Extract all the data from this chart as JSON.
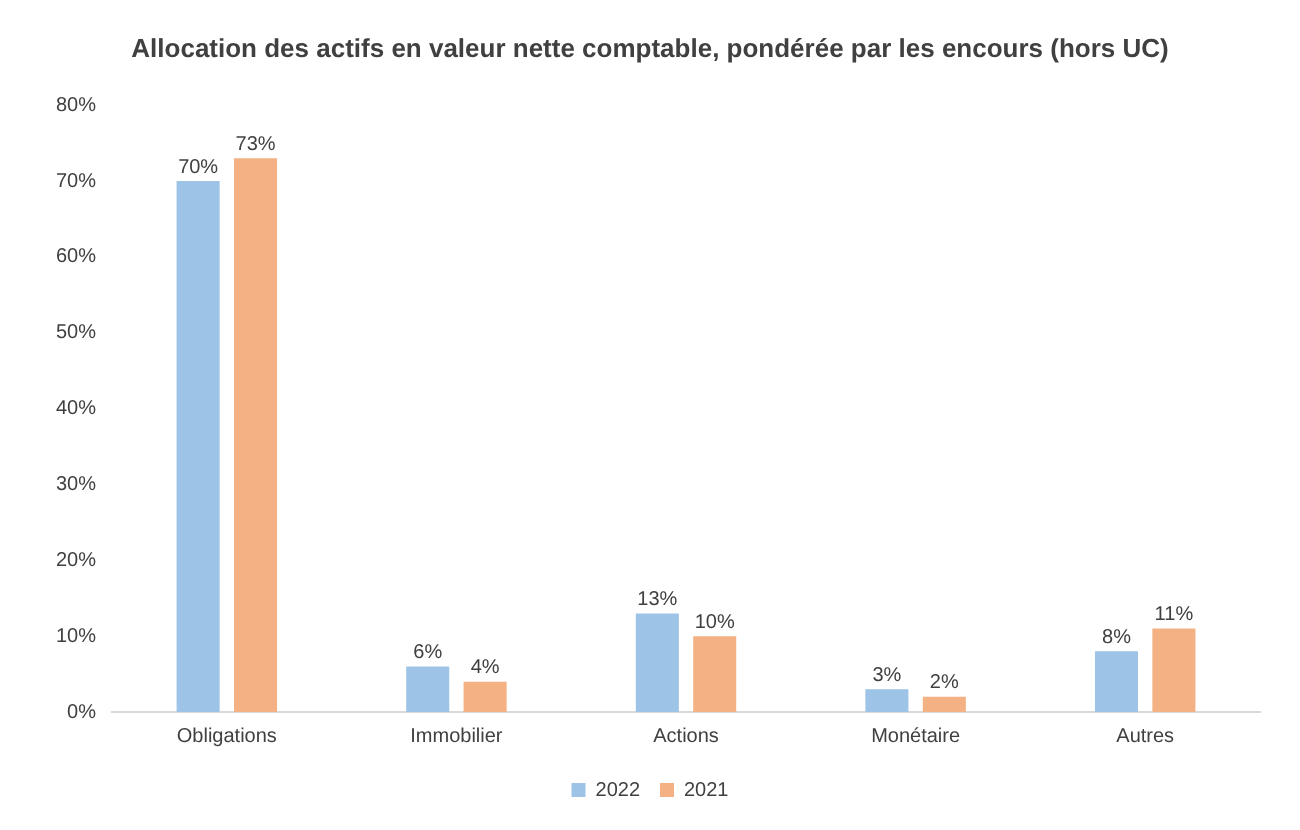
{
  "chart_data": {
    "type": "bar",
    "title": "Allocation des actifs en valeur nette comptable, pondérée par les encours (hors UC)",
    "categories": [
      "Obligations",
      "Immobilier",
      "Actions",
      "Monétaire",
      "Autres"
    ],
    "series": [
      {
        "name": "2022",
        "color": "#9dc3e6",
        "values": [
          70,
          6,
          13,
          3,
          8
        ],
        "value_labels": [
          "70%",
          "6%",
          "13%",
          "3%",
          "8%"
        ]
      },
      {
        "name": "2021",
        "color": "#f4b183",
        "values": [
          73,
          4,
          10,
          2,
          11
        ],
        "value_labels": [
          "73%",
          "4%",
          "10%",
          "2%",
          "11%"
        ]
      }
    ],
    "ylim": [
      0,
      80
    ],
    "yticks": [
      {
        "value": 0,
        "label": "0%"
      },
      {
        "value": 10,
        "label": "10%"
      },
      {
        "value": 20,
        "label": "20%"
      },
      {
        "value": 30,
        "label": "30%"
      },
      {
        "value": 40,
        "label": "40%"
      },
      {
        "value": 50,
        "label": "50%"
      },
      {
        "value": 60,
        "label": "60%"
      },
      {
        "value": 70,
        "label": "70%"
      },
      {
        "value": 80,
        "label": "80%"
      }
    ],
    "grid": false,
    "legend": "bottom"
  }
}
